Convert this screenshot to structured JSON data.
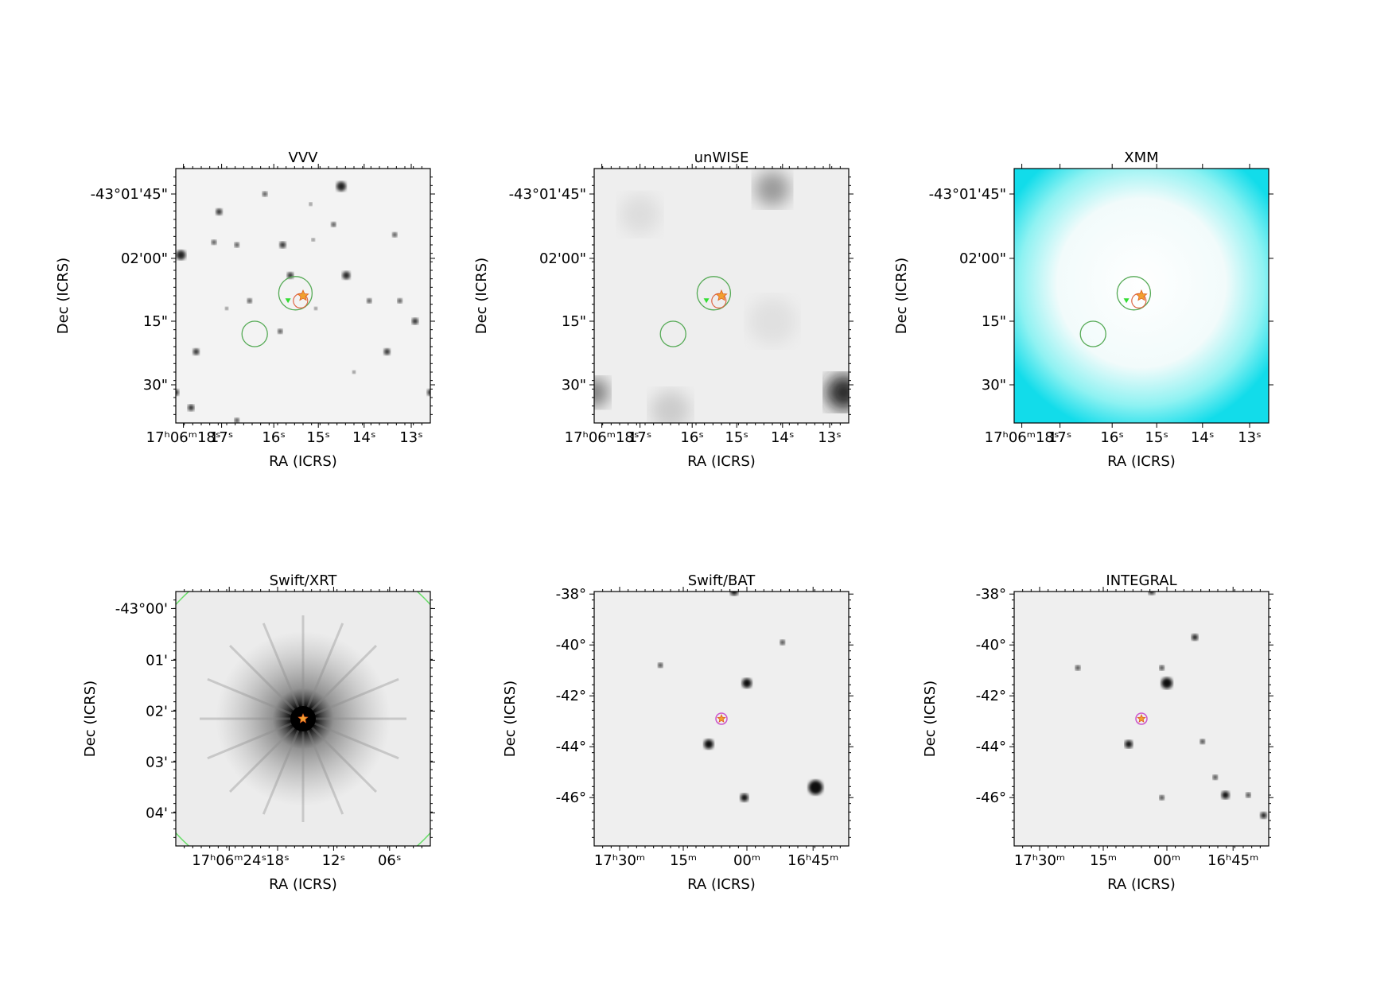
{
  "panels": [
    {
      "title": "VVV",
      "xlabel": "RA (ICRS)",
      "ylabel": "Dec (ICRS)",
      "xticks": [
        "17ʰ06ᵐ18ˢ",
        "17ˢ",
        "16ˢ",
        "15ˢ",
        "14ˢ",
        "13ˢ"
      ],
      "yticks": [
        "-43°01'45\"",
        "02'00\"",
        "15\"",
        "30\""
      ]
    },
    {
      "title": "unWISE",
      "xlabel": "RA (ICRS)",
      "ylabel": "Dec (ICRS)",
      "xticks": [
        "17ʰ06ᵐ18ˢ",
        "17ˢ",
        "16ˢ",
        "15ˢ",
        "14ˢ",
        "13ˢ"
      ],
      "yticks": [
        "-43°01'45\"",
        "02'00\"",
        "15\"",
        "30\""
      ]
    },
    {
      "title": "XMM",
      "xlabel": "RA (ICRS)",
      "ylabel": "Dec (ICRS)",
      "xticks": [
        "17ʰ06ᵐ18ˢ",
        "17ˢ",
        "16ˢ",
        "15ˢ",
        "14ˢ",
        "13ˢ"
      ],
      "yticks": [
        "-43°01'45\"",
        "02'00\"",
        "15\"",
        "30\""
      ]
    },
    {
      "title": "Swift/XRT",
      "xlabel": "RA (ICRS)",
      "ylabel": "Dec (ICRS)",
      "xticks": [
        "17ʰ06ᵐ24ˢ",
        "18ˢ",
        "12ˢ",
        "06ˢ"
      ],
      "yticks": [
        "-43°00'",
        "01'",
        "02'",
        "03'",
        "04'"
      ]
    },
    {
      "title": "Swift/BAT",
      "xlabel": "RA (ICRS)",
      "ylabel": "Dec (ICRS)",
      "xticks": [
        "17ʰ30ᵐ",
        "15ᵐ",
        "00ᵐ",
        "16ʰ45ᵐ"
      ],
      "yticks": [
        "-38°",
        "-40°",
        "-42°",
        "-44°",
        "-46°"
      ]
    },
    {
      "title": "INTEGRAL",
      "xlabel": "RA (ICRS)",
      "ylabel": "Dec (ICRS)",
      "xticks": [
        "17ʰ30ᵐ",
        "15ᵐ",
        "00ᵐ",
        "16ʰ45ᵐ"
      ],
      "yticks": [
        "-38°",
        "-40°",
        "-42°",
        "-44°",
        "-46°"
      ]
    }
  ]
}
